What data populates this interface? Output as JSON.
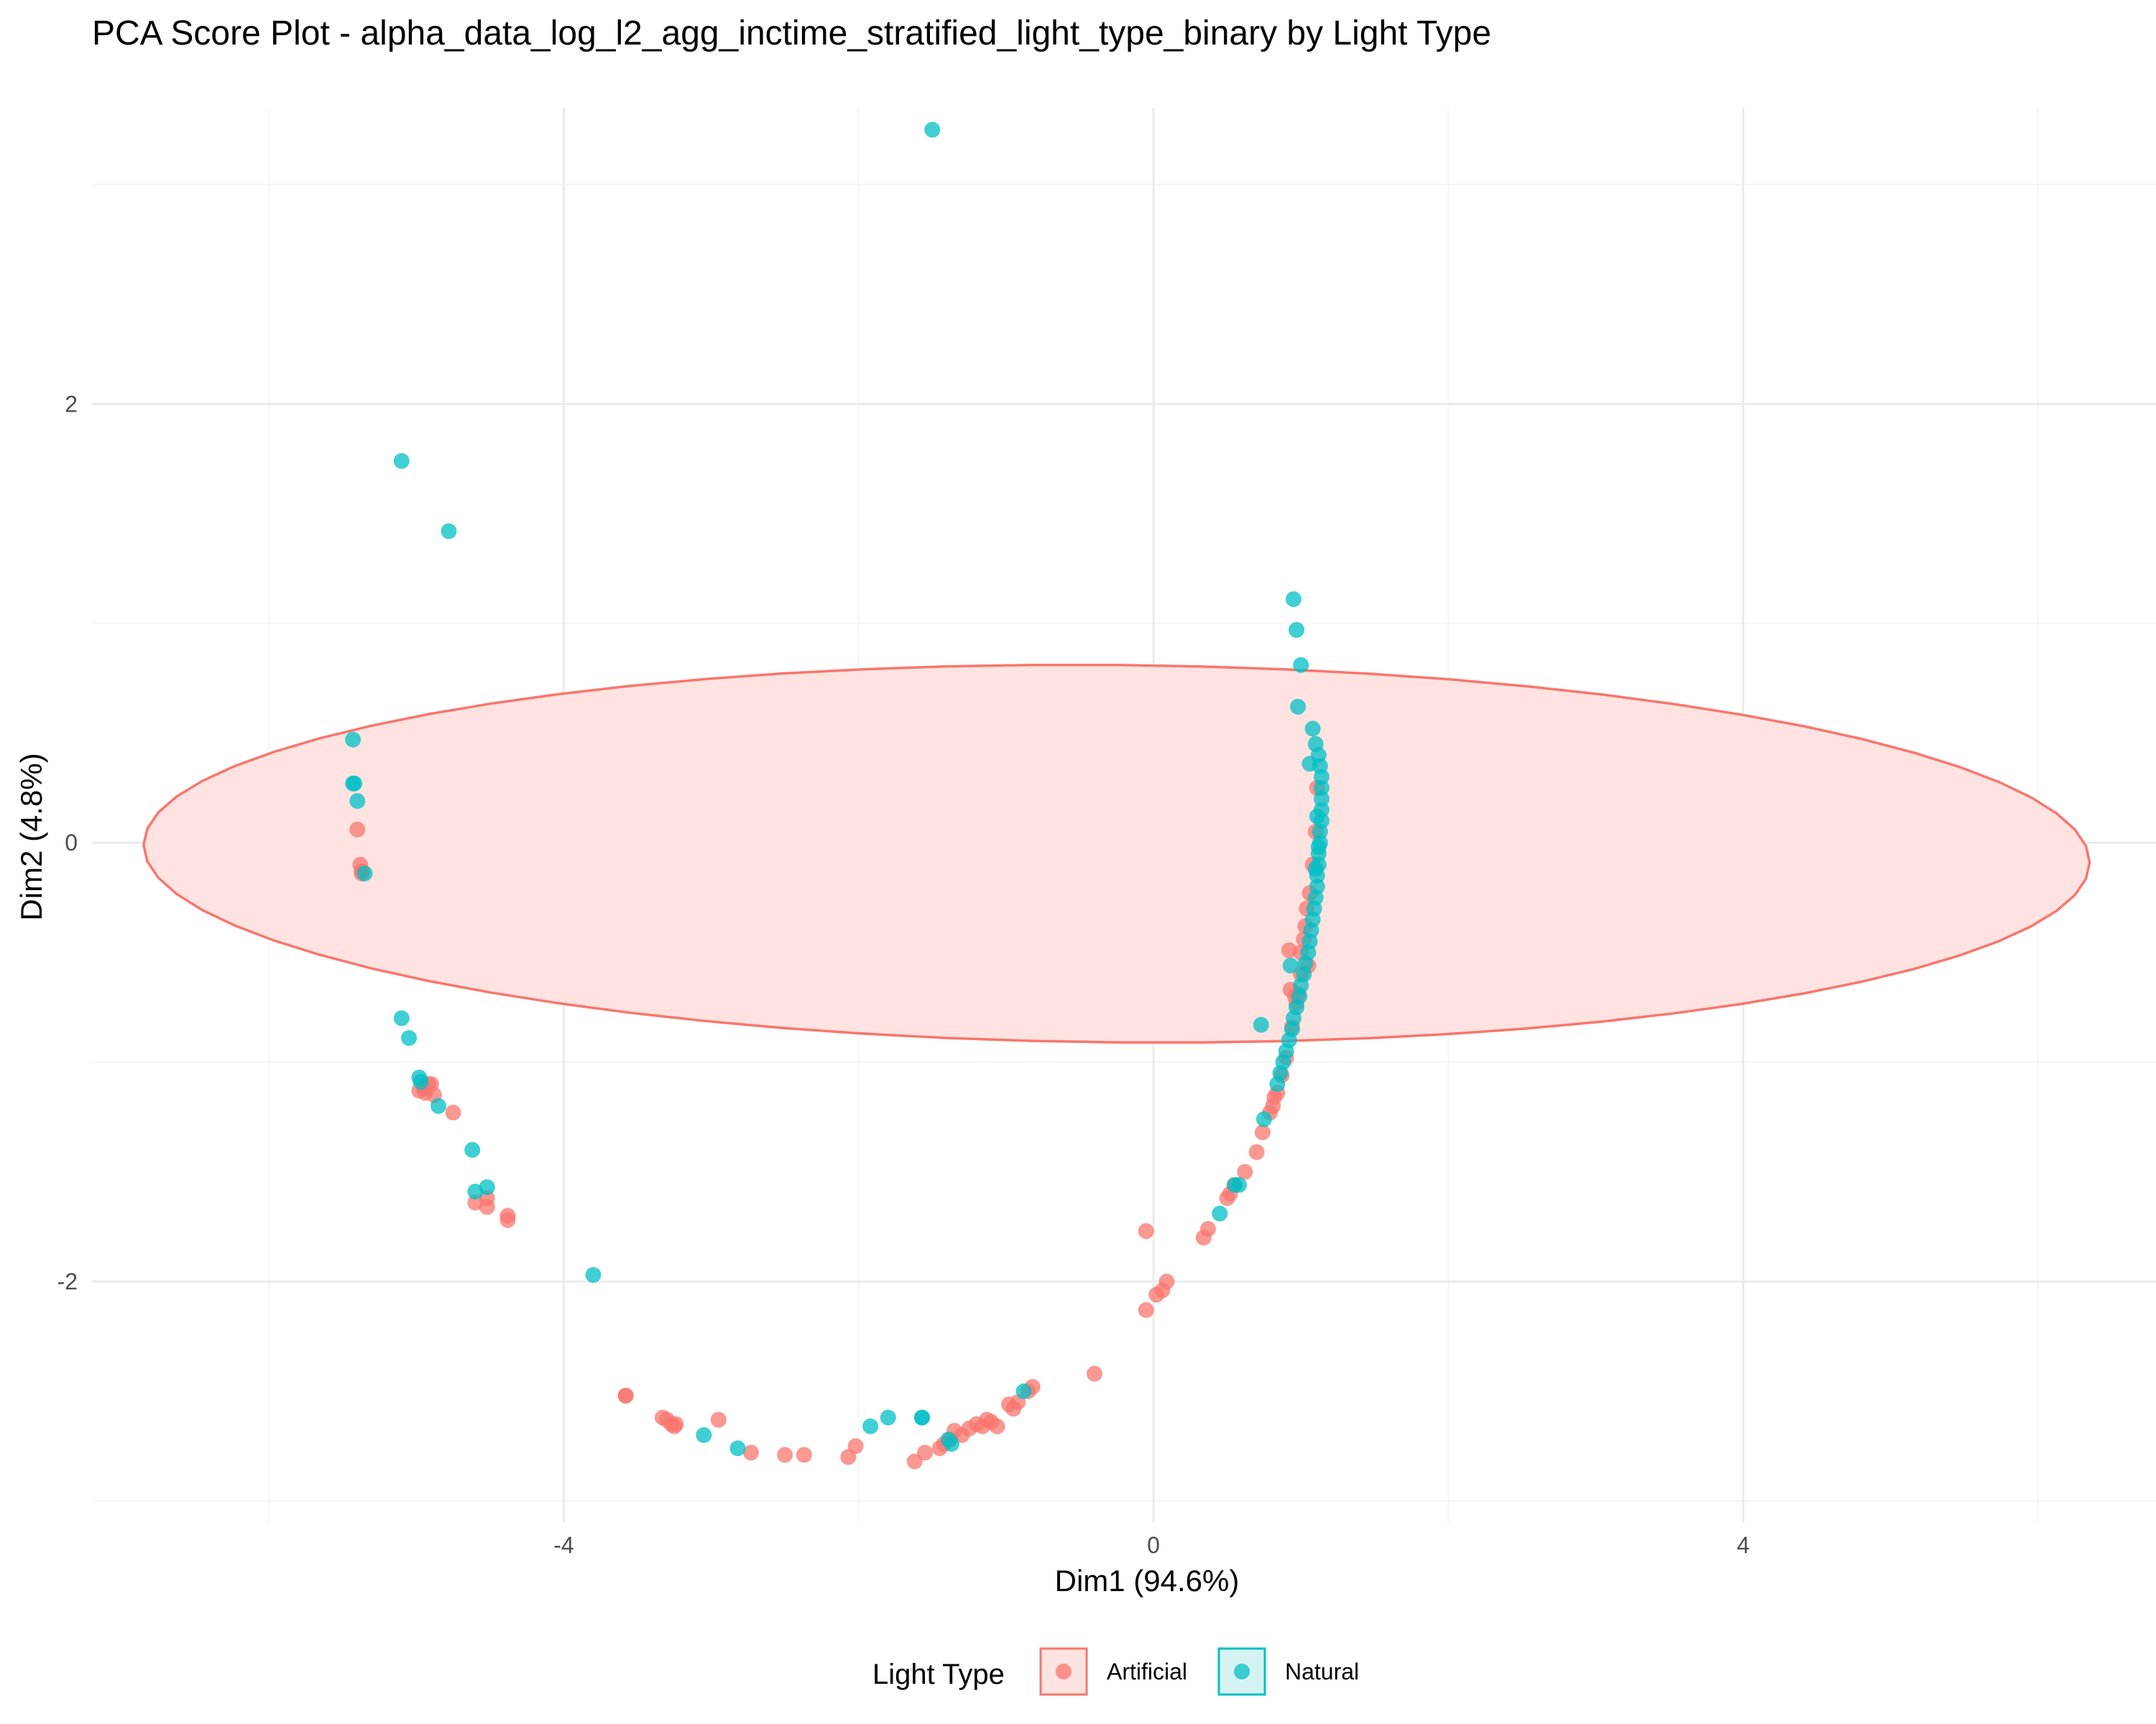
{
  "chart_data": {
    "type": "scatter",
    "title": "PCA Score Plot - alpha_data_log_l2_agg_inctime_stratified_light_type_binary by Light Type",
    "xlabel": "Dim1 (94.6%)",
    "ylabel": "Dim2 (4.8%)",
    "xlim": [
      -7.2,
      6.8
    ],
    "ylim": [
      -3.1,
      3.35
    ],
    "x_ticks": [
      -4,
      0,
      4
    ],
    "y_ticks": [
      -2,
      0,
      2
    ],
    "x_tick_labels": [
      "-4",
      "0",
      "4"
    ],
    "y_tick_labels": [
      "-2",
      "0",
      "2"
    ],
    "grid": true,
    "legend": {
      "title": "Light Type",
      "position": "bottom",
      "entries": [
        "Artificial",
        "Natural"
      ]
    },
    "colors": {
      "Artificial": "#F8766D",
      "Natural": "#00BFC4",
      "ellipse_fill": "#FFE3E1",
      "grid_major": "#EBEBEB",
      "grid_minor": "#F5F5F5"
    },
    "ellipse": {
      "series": "Artificial",
      "center": [
        -0.25,
        -0.05
      ],
      "semi_axes": [
        6.6,
        0.86
      ],
      "rotation_deg": -0.35
    },
    "series": [
      {
        "name": "Artificial",
        "points": [
          [
            -5.4,
            0.06
          ],
          [
            -5.38,
            -0.1
          ],
          [
            -5.37,
            -0.13
          ],
          [
            -5.37,
            -0.14
          ],
          [
            -4.98,
            -1.13
          ],
          [
            -4.95,
            -1.12
          ],
          [
            -4.94,
            -1.14
          ],
          [
            -4.92,
            -1.1
          ],
          [
            -4.9,
            -1.1
          ],
          [
            -4.88,
            -1.15
          ],
          [
            -4.75,
            -1.23
          ],
          [
            -4.6,
            -1.64
          ],
          [
            -4.52,
            -1.62
          ],
          [
            -4.52,
            -1.66
          ],
          [
            -4.38,
            -1.7
          ],
          [
            -4.38,
            -1.72
          ],
          [
            -3.58,
            -2.52
          ],
          [
            -3.58,
            -2.52
          ],
          [
            -3.33,
            -2.62
          ],
          [
            -3.3,
            -2.63
          ],
          [
            -3.27,
            -2.65
          ],
          [
            -3.25,
            -2.66
          ],
          [
            -3.24,
            -2.65
          ],
          [
            -2.95,
            -2.63
          ],
          [
            -2.73,
            -2.78
          ],
          [
            -2.5,
            -2.79
          ],
          [
            -2.37,
            -2.79
          ],
          [
            -2.07,
            -2.8
          ],
          [
            -2.02,
            -2.75
          ],
          [
            -1.62,
            -2.82
          ],
          [
            -1.55,
            -2.78
          ],
          [
            -1.45,
            -2.76
          ],
          [
            -1.42,
            -2.74
          ],
          [
            -1.38,
            -2.72
          ],
          [
            -1.35,
            -2.68
          ],
          [
            -1.3,
            -2.7
          ],
          [
            -1.25,
            -2.67
          ],
          [
            -1.2,
            -2.65
          ],
          [
            -1.16,
            -2.66
          ],
          [
            -1.13,
            -2.63
          ],
          [
            -1.1,
            -2.64
          ],
          [
            -1.06,
            -2.66
          ],
          [
            -0.98,
            -2.56
          ],
          [
            -0.95,
            -2.58
          ],
          [
            -0.92,
            -2.55
          ],
          [
            -0.85,
            -2.5
          ],
          [
            -0.82,
            -2.48
          ],
          [
            -0.4,
            -2.42
          ],
          [
            -0.05,
            -1.77
          ],
          [
            -0.05,
            -2.13
          ],
          [
            0.02,
            -2.06
          ],
          [
            0.06,
            -2.04
          ],
          [
            0.09,
            -2.0
          ],
          [
            0.34,
            -1.8
          ],
          [
            0.37,
            -1.76
          ],
          [
            0.5,
            -1.62
          ],
          [
            0.52,
            -1.6
          ],
          [
            0.55,
            -1.56
          ],
          [
            0.62,
            -1.5
          ],
          [
            0.7,
            -1.41
          ],
          [
            0.74,
            -1.32
          ],
          [
            0.79,
            -1.23
          ],
          [
            0.81,
            -1.2
          ],
          [
            0.82,
            -1.16
          ],
          [
            0.84,
            -1.14
          ],
          [
            0.87,
            -1.06
          ],
          [
            0.9,
            -0.98
          ],
          [
            0.94,
            -0.84
          ],
          [
            0.97,
            -0.73
          ],
          [
            0.98,
            -0.69
          ],
          [
            0.93,
            -0.67
          ],
          [
            0.92,
            -0.49
          ],
          [
            1.0,
            -0.5
          ],
          [
            1.02,
            -0.44
          ],
          [
            1.03,
            -0.38
          ],
          [
            1.04,
            -0.3
          ],
          [
            1.06,
            -0.23
          ],
          [
            1.08,
            -0.1
          ],
          [
            1.1,
            0.05
          ],
          [
            1.11,
            0.25
          ],
          [
            1.05,
            -0.56
          ],
          [
            1.0,
            -0.6
          ],
          [
            0.96,
            -0.7
          ]
        ]
      },
      {
        "name": "Natural",
        "points": [
          [
            -1.5,
            3.25
          ],
          [
            -5.1,
            1.74
          ],
          [
            -4.78,
            1.42
          ],
          [
            -5.43,
            0.47
          ],
          [
            -5.43,
            0.27
          ],
          [
            -5.42,
            0.27
          ],
          [
            -5.4,
            0.19
          ],
          [
            -5.35,
            -0.14
          ],
          [
            -5.1,
            -0.8
          ],
          [
            -5.05,
            -0.89
          ],
          [
            -4.98,
            -1.07
          ],
          [
            -4.97,
            -1.09
          ],
          [
            -4.85,
            -1.2
          ],
          [
            -4.62,
            -1.4
          ],
          [
            -4.6,
            -1.59
          ],
          [
            -4.52,
            -1.57
          ],
          [
            -3.8,
            -1.97
          ],
          [
            -3.05,
            -2.7
          ],
          [
            -2.82,
            -2.76
          ],
          [
            -1.92,
            -2.66
          ],
          [
            -1.8,
            -2.62
          ],
          [
            -1.57,
            -2.62
          ],
          [
            -1.57,
            -2.62
          ],
          [
            -1.39,
            -2.72
          ],
          [
            -1.37,
            -2.74
          ],
          [
            -0.88,
            -2.5
          ],
          [
            0.45,
            -1.69
          ],
          [
            0.55,
            -1.56
          ],
          [
            0.58,
            -1.56
          ],
          [
            0.75,
            -1.26
          ],
          [
            0.73,
            -0.83
          ],
          [
            0.95,
            1.11
          ],
          [
            0.97,
            0.97
          ],
          [
            1.0,
            0.81
          ],
          [
            0.98,
            0.62
          ],
          [
            1.08,
            0.52
          ],
          [
            1.06,
            0.36
          ],
          [
            1.1,
            0.45
          ],
          [
            1.12,
            0.4
          ],
          [
            1.13,
            0.35
          ],
          [
            1.14,
            0.3
          ],
          [
            1.14,
            0.25
          ],
          [
            1.14,
            0.2
          ],
          [
            1.14,
            0.15
          ],
          [
            1.14,
            0.1
          ],
          [
            1.13,
            0.05
          ],
          [
            1.13,
            0.0
          ],
          [
            1.12,
            -0.05
          ],
          [
            1.12,
            -0.1
          ],
          [
            1.11,
            -0.15
          ],
          [
            1.11,
            -0.2
          ],
          [
            1.1,
            -0.25
          ],
          [
            1.09,
            -0.3
          ],
          [
            1.08,
            -0.35
          ],
          [
            1.07,
            -0.4
          ],
          [
            1.06,
            -0.45
          ],
          [
            1.05,
            -0.5
          ],
          [
            1.03,
            -0.55
          ],
          [
            1.02,
            -0.6
          ],
          [
            1.0,
            -0.65
          ],
          [
            0.99,
            -0.7
          ],
          [
            0.97,
            -0.75
          ],
          [
            0.95,
            -0.8
          ],
          [
            0.94,
            -0.85
          ],
          [
            0.92,
            -0.9
          ],
          [
            0.9,
            -0.95
          ],
          [
            0.88,
            -1.0
          ],
          [
            0.86,
            -1.05
          ],
          [
            0.84,
            -1.1
          ],
          [
            0.93,
            -0.56
          ],
          [
            1.11,
            0.12
          ],
          [
            1.12,
            -0.02
          ],
          [
            1.1,
            -0.12
          ]
        ]
      }
    ]
  }
}
